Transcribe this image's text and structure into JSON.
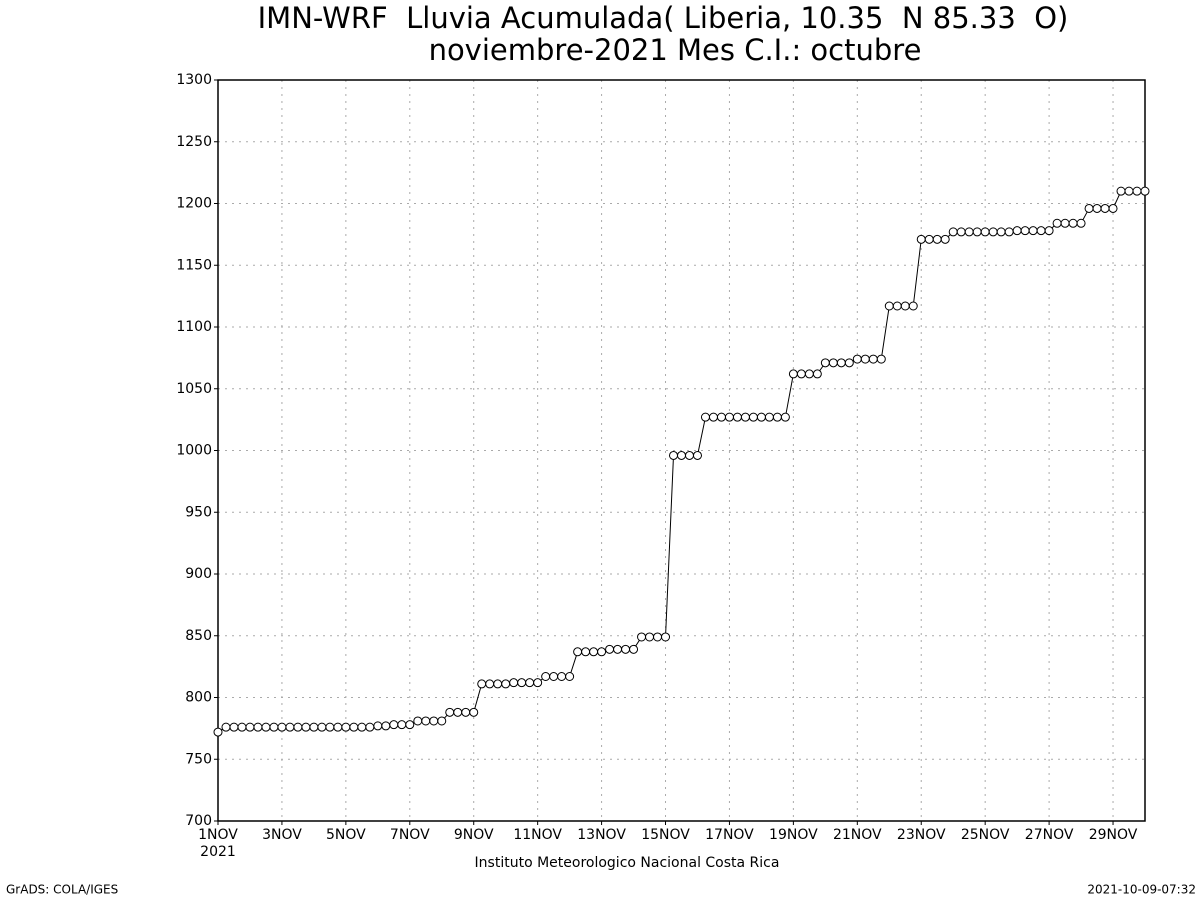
{
  "chart_data": {
    "type": "line",
    "title": "IMN-WRF  Lluvia Acumulada( Liberia, 10.35  N 85.33  O)",
    "subtitle": "noviembre-2021 Mes C.I.: octubre",
    "x_sublabel": "2021",
    "footer": "Instituto Meteorologico Nacional Costa Rica",
    "credit": "GrADS: COLA/IGES",
    "timestamp": "2021-10-09-07:32",
    "categories": [
      "1NOV",
      null,
      null,
      null,
      null,
      null,
      null,
      null,
      "3NOV",
      null,
      null,
      null,
      null,
      null,
      null,
      null,
      "5NOV",
      null,
      null,
      null,
      null,
      null,
      null,
      null,
      "7NOV",
      null,
      null,
      null,
      null,
      null,
      null,
      null,
      "9NOV",
      null,
      null,
      null,
      null,
      null,
      null,
      null,
      "11NOV",
      null,
      null,
      null,
      null,
      null,
      null,
      null,
      "13NOV",
      null,
      null,
      null,
      null,
      null,
      null,
      null,
      "15NOV",
      null,
      null,
      null,
      null,
      null,
      null,
      null,
      "17NOV",
      null,
      null,
      null,
      null,
      null,
      null,
      null,
      "19NOV",
      null,
      null,
      null,
      null,
      null,
      null,
      null,
      "21NOV",
      null,
      null,
      null,
      null,
      null,
      null,
      null,
      "23NOV",
      null,
      null,
      null,
      null,
      null,
      null,
      null,
      "25NOV",
      null,
      null,
      null,
      null,
      null,
      null,
      null,
      "27NOV",
      null,
      null,
      null,
      null,
      null,
      null,
      null,
      "29NOV",
      null,
      null,
      null,
      null
    ],
    "values": [
      772,
      776,
      776,
      776,
      776,
      776,
      776,
      776,
      776,
      776,
      776,
      776,
      776,
      776,
      776,
      776,
      776,
      776,
      776,
      776,
      777,
      777,
      778,
      778,
      778,
      781,
      781,
      781,
      781,
      788,
      788,
      788,
      788,
      811,
      811,
      811,
      811,
      812,
      812,
      812,
      812,
      817,
      817,
      817,
      817,
      837,
      837,
      837,
      837,
      839,
      839,
      839,
      839,
      849,
      849,
      849,
      849,
      996,
      996,
      996,
      996,
      1027,
      1027,
      1027,
      1027,
      1027,
      1027,
      1027,
      1027,
      1027,
      1027,
      1027,
      1062,
      1062,
      1062,
      1062,
      1071,
      1071,
      1071,
      1071,
      1074,
      1074,
      1074,
      1074,
      1117,
      1117,
      1117,
      1117,
      1171,
      1171,
      1171,
      1171,
      1177,
      1177,
      1177,
      1177,
      1177,
      1177,
      1177,
      1177,
      1178,
      1178,
      1178,
      1178,
      1178,
      1184,
      1184,
      1184,
      1184,
      1196,
      1196,
      1196,
      1196,
      1210,
      1210,
      1210,
      1210
    ],
    "color": "#000000",
    "ylim": [
      700,
      1300
    ],
    "yticks": [
      700,
      750,
      800,
      850,
      900,
      950,
      1000,
      1050,
      1100,
      1150,
      1200,
      1250,
      1300
    ],
    "grid": true
  }
}
